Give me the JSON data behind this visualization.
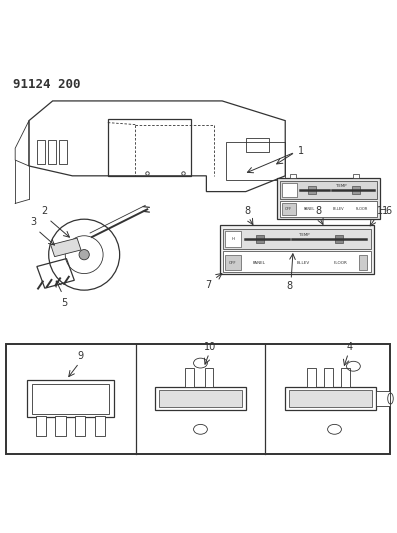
{
  "title": "91124 200",
  "bg_color": "#ffffff",
  "line_color": "#333333",
  "light_gray": "#cccccc",
  "mid_gray": "#888888",
  "panel_labels": [
    "PANEL",
    "BI-LEV",
    "FLOOR"
  ]
}
